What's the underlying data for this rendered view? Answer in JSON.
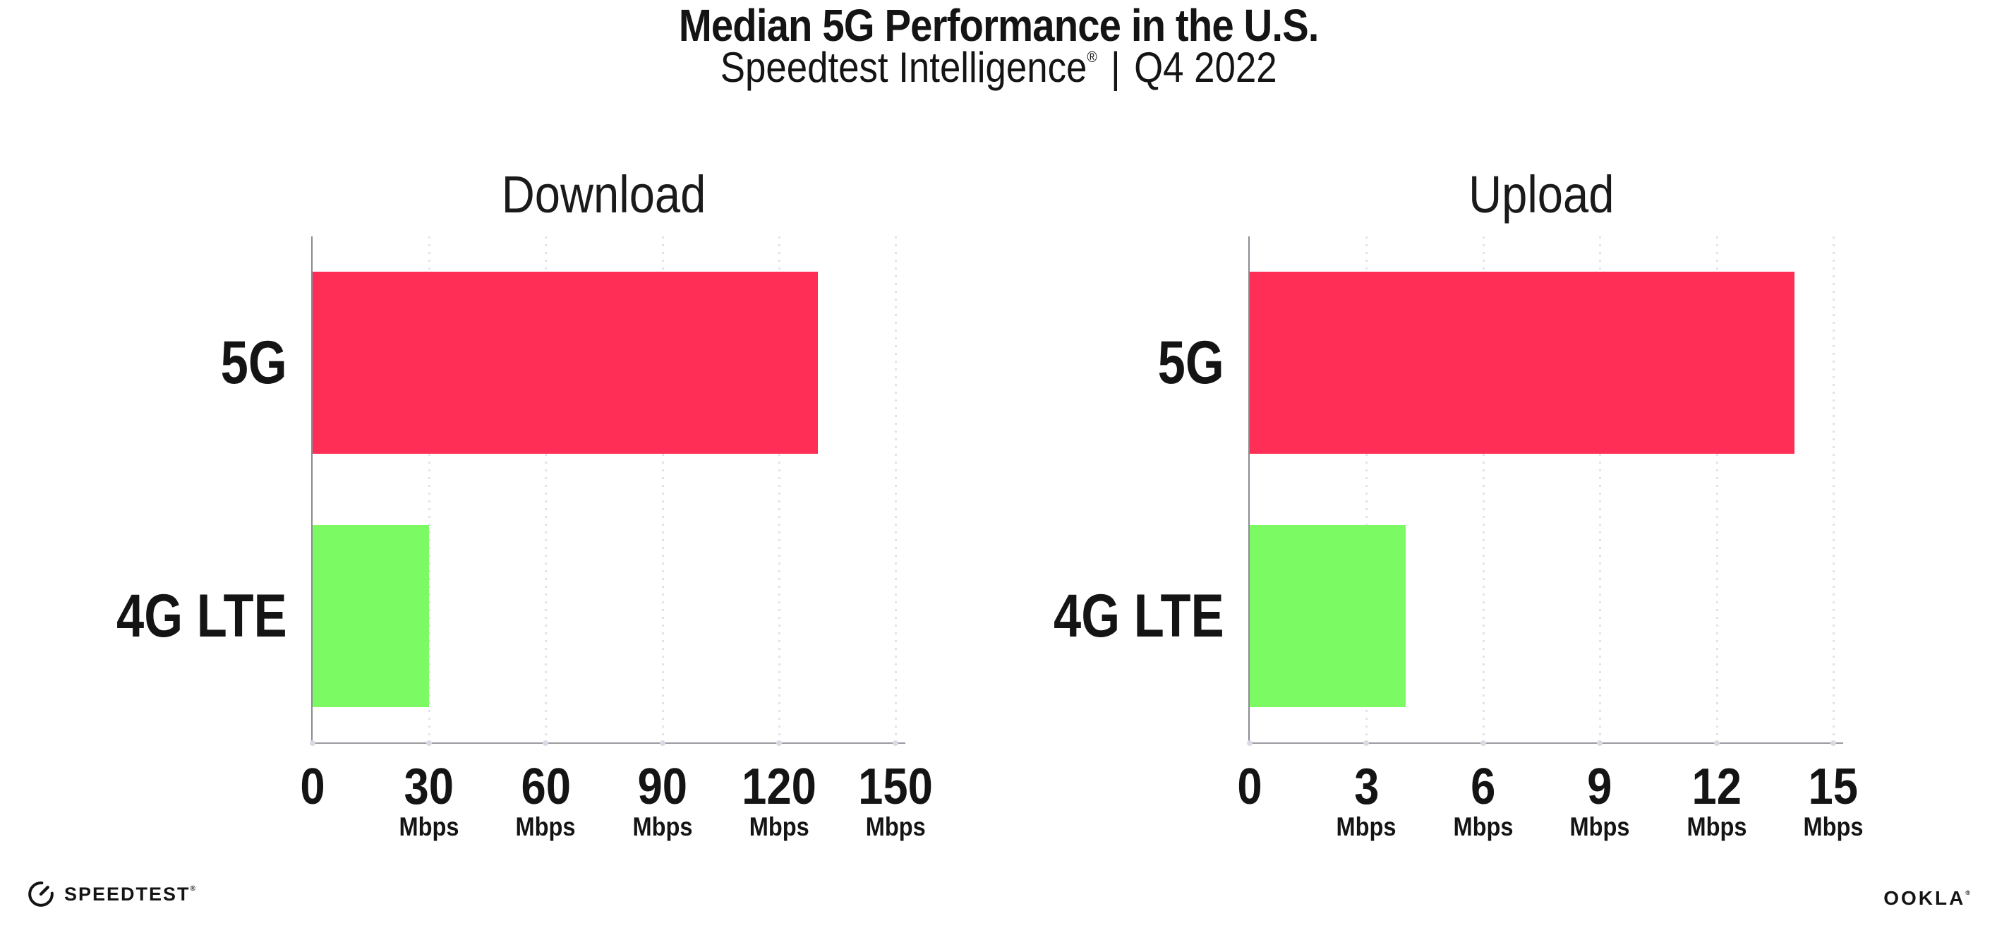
{
  "header": {
    "title": "Median 5G Performance in the U.S.",
    "subtitle": {
      "brand": "Speedtest Intelligence",
      "registered": "®",
      "separator": "|",
      "period": "Q4 2022"
    }
  },
  "chart_data": [
    {
      "type": "bar",
      "orientation": "horizontal",
      "title": "Download",
      "categories": [
        "5G",
        "4G LTE"
      ],
      "values": [
        130,
        30
      ],
      "unit": "Mbps",
      "xlim": [
        0,
        150
      ],
      "xticks": [
        0,
        30,
        60,
        90,
        120,
        150
      ],
      "xtick_unit": "Mbps",
      "grid": "vertical-dotted",
      "legend": "none",
      "bar_colors": [
        "#FF2E56",
        "#7CFA64"
      ]
    },
    {
      "type": "bar",
      "orientation": "horizontal",
      "title": "Upload",
      "categories": [
        "5G",
        "4G LTE"
      ],
      "values": [
        14,
        4
      ],
      "unit": "Mbps",
      "xlim": [
        0,
        15
      ],
      "xticks": [
        0,
        3,
        6,
        9,
        12,
        15
      ],
      "xtick_unit": "Mbps",
      "grid": "vertical-dotted",
      "legend": "none",
      "bar_colors": [
        "#FF2E56",
        "#7CFA64"
      ]
    }
  ],
  "footer": {
    "speedtest": {
      "icon": "speedtest-gauge-icon",
      "label": "SPEEDTEST",
      "registered": "®"
    },
    "ookla": {
      "label": "OOKLA",
      "registered": "®"
    }
  },
  "colors": {
    "bar_5g": "#FF2E56",
    "bar_4g": "#7CFA64",
    "gridline": "#E2E2EE",
    "axis": "#8A8A94",
    "text": "#141414",
    "background": "#FFFFFF"
  }
}
